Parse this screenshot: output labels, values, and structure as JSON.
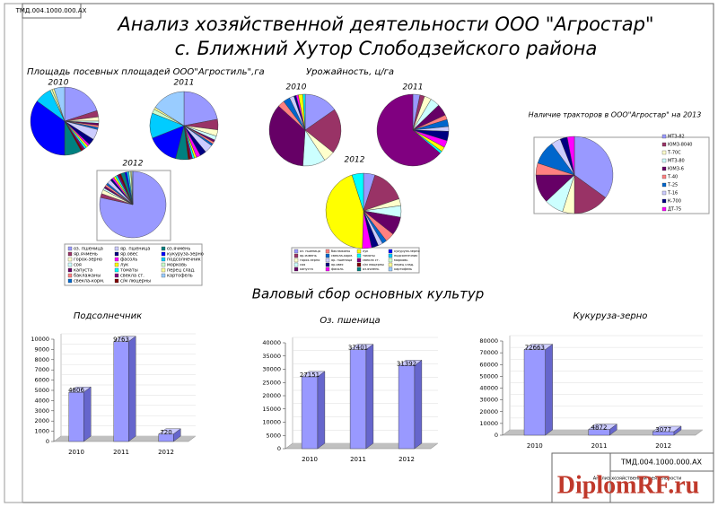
{
  "stamp_top": "ТМД.004.1000.000.АХ",
  "title": [
    "Анализ хозяйственной деятельности ООО \"Агростар\"",
    "с. Ближний Хутор Слободзейского района"
  ],
  "area": {
    "title": "Площадь посевных площадей ООО\"Агростиль\",га",
    "years": [
      "2010",
      "2011",
      "2012"
    ],
    "labels": [
      "оз. пшеница",
      "яр.ячмень",
      "горох-зерно",
      "соя",
      "капуста",
      "баклажаны",
      "свекла-корм.",
      "яр. пшеница",
      "яр.овес",
      "фасоль",
      "лук",
      "томаты",
      "свекла ст.",
      "с/м люцерны",
      "оз.ячмень",
      "кукуруза-зерно",
      "подсолнечник",
      "морковь",
      "перец слад.",
      "картофель"
    ],
    "colors": [
      "#9999ff",
      "#993366",
      "#ffffcc",
      "#ccffff",
      "#660066",
      "#ff8080",
      "#0066cc",
      "#ccccff",
      "#000080",
      "#ff00ff",
      "#ffff00",
      "#00ffff",
      "#800080",
      "#800000",
      "#008080",
      "#0000ff",
      "#00ccff",
      "#ccffcc",
      "#ffff99",
      "#99ccff"
    ],
    "pies": [
      [
        20,
        3,
        2,
        1,
        1,
        1,
        1,
        5,
        3,
        1,
        1,
        1,
        1,
        1,
        8,
        35,
        8,
        1,
        1,
        5
      ],
      [
        22,
        5,
        3,
        2,
        1,
        1,
        1,
        4,
        3,
        2,
        1,
        1,
        1,
        1,
        6,
        15,
        12,
        2,
        1,
        16
      ],
      [
        80,
        2,
        2,
        1,
        1,
        1,
        1,
        2,
        1,
        1,
        1,
        1,
        1,
        1,
        2,
        1,
        1,
        1,
        0.5,
        0.5
      ]
    ]
  },
  "yield": {
    "title": "Урожайность, ц/га",
    "years": [
      "2010",
      "2011",
      "2012"
    ],
    "labels": [
      "оз. пшеница",
      "яр.ячмень",
      "горох-зерно",
      "соя",
      "капуста",
      "баклажаны",
      "свекла-корм.",
      "яр. пшеница",
      "яр.овес",
      "фасоль",
      "лук",
      "томаты",
      "свекла ст.",
      "с/м люцерны",
      "оз.ячмень",
      "кукуруза-зерно",
      "подсолнечник",
      "морковь",
      "перец слад.",
      "картофель"
    ],
    "colors": [
      "#9999ff",
      "#993366",
      "#ffffcc",
      "#ccffff",
      "#660066",
      "#ff8080",
      "#0066cc",
      "#ccccff",
      "#000080",
      "#ff00ff",
      "#ffff00",
      "#00ffff",
      "#800080",
      "#800000",
      "#008080",
      "#0000ff",
      "#00ccff",
      "#ccffcc",
      "#ffff99",
      "#99ccff"
    ],
    "pies": [
      [
        15,
        20,
        5,
        10,
        35,
        3,
        3,
        2,
        1,
        1,
        2,
        1
      ],
      [
        3,
        2,
        3,
        4,
        5,
        2,
        3,
        2,
        4,
        3,
        2,
        1,
        60
      ],
      [
        5,
        15,
        3,
        5,
        8,
        4,
        2,
        2,
        3,
        4,
        45,
        5
      ]
    ]
  },
  "tractors": {
    "title": "Наличие тракторов в ООО\"Агростар\" на 2013",
    "labels": [
      "МТЗ-82",
      "ЮМЗ-8040",
      "Т-70С",
      "МТЗ-80",
      "ЮМЗ-6",
      "Т-40",
      "Т-25",
      "Т-16",
      "К-700",
      "ДТ-75"
    ],
    "colors": [
      "#9999ff",
      "#993366",
      "#ffffcc",
      "#ccffff",
      "#660066",
      "#ff8080",
      "#0066cc",
      "#ccccff",
      "#000080",
      "#ff00ff"
    ],
    "values": [
      35,
      15,
      5,
      8,
      12,
      5,
      10,
      4,
      3,
      3
    ]
  },
  "section_title": "Валовый сбор основных культур",
  "bars": [
    {
      "title": "Подсолнечник",
      "categories": [
        "2010",
        "2011",
        "2012"
      ],
      "values": [
        4806,
        9763,
        720
      ],
      "ylim": [
        0,
        10000
      ],
      "yticks": [
        0,
        1000,
        2000,
        3000,
        4000,
        5000,
        6000,
        7000,
        8000,
        9000,
        10000
      ],
      "color": "#9999ff"
    },
    {
      "title": "Оз. пшеница",
      "categories": [
        "2010",
        "2011",
        "2012"
      ],
      "values": [
        27151,
        37401,
        31392
      ],
      "ylim": [
        0,
        40000
      ],
      "yticks": [
        0,
        5000,
        10000,
        15000,
        20000,
        25000,
        30000,
        35000,
        40000
      ],
      "color": "#9999ff"
    },
    {
      "title": "Кукуруза-зерно",
      "categories": [
        "2010",
        "2011",
        "2012"
      ],
      "values": [
        72663,
        4872,
        3077
      ],
      "ylim": [
        0,
        80000
      ],
      "yticks": [
        0,
        10000,
        20000,
        30000,
        40000,
        50000,
        60000,
        70000,
        80000
      ],
      "color": "#9999ff"
    }
  ],
  "stamp": {
    "code": "ТМД.004.1000.000.АХ",
    "text": "Анализ хозяйственной деятельности"
  },
  "watermark": "DiplomRF.ru"
}
